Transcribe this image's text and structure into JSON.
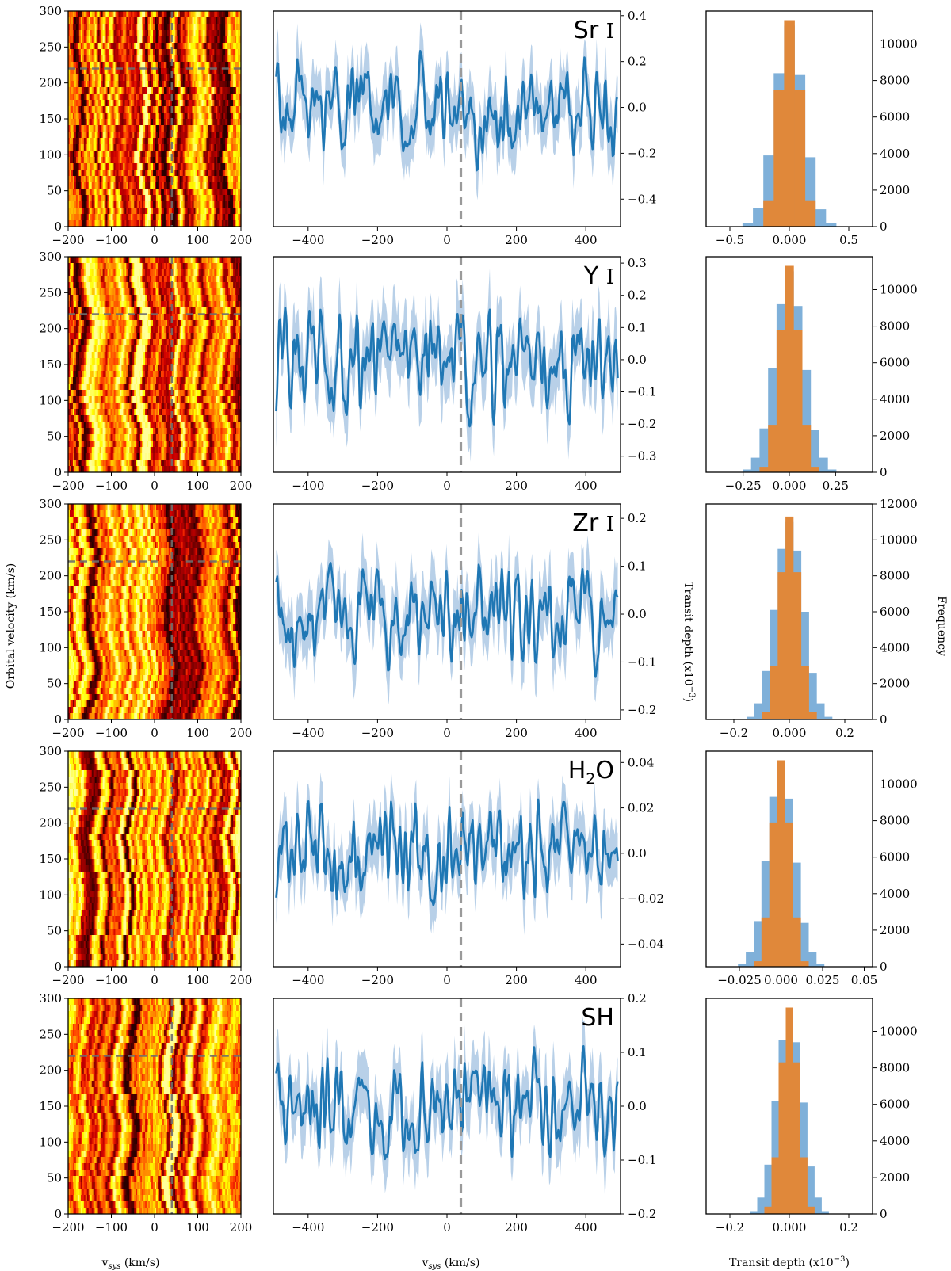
{
  "figure": {
    "left_xlabel": "v<sub>sys</sub> (km/s)",
    "mid_xlabel": "v<sub>sys</sub> (km/s)",
    "right_xlabel": "Transit depth (x10<sup>−3</sup>)",
    "left_ylabel": "Orbital velocity (km/s)",
    "mid_ylabel": "Transit depth (x10<sup>−3</sup>)",
    "right_ylabel": "Frequency"
  },
  "chart_data": [
    {
      "type": "heatmap",
      "panel": "ccf-map",
      "species": "Sr I",
      "xlim": [
        -200,
        200
      ],
      "ylim": [
        0,
        300
      ],
      "xticks": [
        -200,
        -100,
        0,
        100,
        200
      ],
      "yticks": [
        0,
        50,
        100,
        150,
        200,
        250,
        300
      ],
      "marker_vsys": 40,
      "marker_kp": 220,
      "colormap": "hot"
    },
    {
      "type": "line",
      "panel": "ccf-1d",
      "species": "Sr I",
      "xlim": [
        -500,
        500
      ],
      "ylim": [
        -0.52,
        0.42
      ],
      "xticks": [
        -400,
        -200,
        0,
        200,
        400
      ],
      "yticks": [
        -0.4,
        -0.2,
        0.0,
        0.2,
        0.4
      ],
      "amplitude": 0.1,
      "marker_vsys": 40,
      "line_color": "#1f77b4",
      "band_color": "#b8d0e8"
    },
    {
      "type": "bar",
      "panel": "histogram",
      "species": "Sr I",
      "xlim": [
        -0.7,
        0.7
      ],
      "ylim": [
        0,
        11800
      ],
      "xticks": [
        -0.5,
        0.0,
        0.5
      ],
      "yticks": [
        0,
        2000,
        4000,
        6000,
        8000,
        10000
      ],
      "series": [
        {
          "color": "#7fb0d9",
          "bin_width": 0.0875,
          "bin_centers": [
            -0.35,
            -0.2625,
            -0.175,
            -0.0875,
            0.0,
            0.0875,
            0.175,
            0.2625,
            0.35
          ],
          "counts": [
            200,
            1000,
            3900,
            8400,
            11000,
            8300,
            3800,
            950,
            200
          ]
        },
        {
          "color": "#e0883a",
          "bin_width": 0.0875,
          "bin_centers": [
            -0.175,
            -0.0875,
            0.0,
            0.0875,
            0.175
          ],
          "counts": [
            1400,
            7500,
            11300,
            7500,
            1400
          ]
        }
      ]
    },
    {
      "type": "heatmap",
      "panel": "ccf-map",
      "species": "Y I",
      "xlim": [
        -200,
        200
      ],
      "ylim": [
        0,
        300
      ],
      "xticks": [
        -200,
        -100,
        0,
        100,
        200
      ],
      "yticks": [
        0,
        50,
        100,
        150,
        200,
        250,
        300
      ],
      "marker_vsys": 40,
      "marker_kp": 220,
      "colormap": "hot"
    },
    {
      "type": "line",
      "panel": "ccf-1d",
      "species": "Y I",
      "xlim": [
        -500,
        500
      ],
      "ylim": [
        -0.35,
        0.32
      ],
      "xticks": [
        -400,
        -200,
        0,
        200,
        400
      ],
      "yticks": [
        -0.3,
        -0.2,
        -0.1,
        0.0,
        0.1,
        0.2,
        0.3
      ],
      "amplitude": 0.08,
      "marker_vsys": 40,
      "line_color": "#1f77b4",
      "band_color": "#b8d0e8"
    },
    {
      "type": "bar",
      "panel": "histogram",
      "species": "Y I",
      "xlim": [
        -0.45,
        0.45
      ],
      "ylim": [
        0,
        11800
      ],
      "xticks": [
        -0.25,
        0.0,
        0.25
      ],
      "yticks": [
        0,
        2000,
        4000,
        6000,
        8000,
        10000
      ],
      "series": [
        {
          "color": "#7fb0d9",
          "bin_width": 0.046,
          "bin_centers": [
            -0.23,
            -0.184,
            -0.138,
            -0.092,
            -0.046,
            0.0,
            0.046,
            0.092,
            0.138,
            0.184,
            0.23
          ],
          "counts": [
            150,
            800,
            2400,
            5700,
            9200,
            11000,
            9100,
            5600,
            2300,
            800,
            150
          ]
        },
        {
          "color": "#e0883a",
          "bin_width": 0.046,
          "bin_centers": [
            -0.138,
            -0.092,
            -0.046,
            0.0,
            0.046,
            0.092,
            0.138
          ],
          "counts": [
            300,
            2600,
            7800,
            11300,
            7800,
            2600,
            300
          ]
        }
      ]
    },
    {
      "type": "heatmap",
      "panel": "ccf-map",
      "species": "Zr I",
      "xlim": [
        -200,
        200
      ],
      "ylim": [
        0,
        300
      ],
      "xticks": [
        -200,
        -100,
        0,
        100,
        200
      ],
      "yticks": [
        0,
        50,
        100,
        150,
        200,
        250,
        300
      ],
      "marker_vsys": 40,
      "marker_kp": 220,
      "colormap": "hot"
    },
    {
      "type": "line",
      "panel": "ccf-1d",
      "species": "Zr I",
      "xlim": [
        -500,
        500
      ],
      "ylim": [
        -0.22,
        0.23
      ],
      "xticks": [
        -400,
        -200,
        0,
        200,
        400
      ],
      "yticks": [
        -0.2,
        -0.1,
        0.0,
        0.1,
        0.2
      ],
      "amplitude": 0.05,
      "marker_vsys": 40,
      "line_color": "#1f77b4",
      "band_color": "#b8d0e8"
    },
    {
      "type": "bar",
      "panel": "histogram",
      "species": "Zr I",
      "xlim": [
        -0.3,
        0.3
      ],
      "ylim": [
        0,
        12000
      ],
      "xticks": [
        -0.2,
        0.0,
        0.2
      ],
      "yticks": [
        0,
        2000,
        4000,
        6000,
        8000,
        10000,
        12000
      ],
      "series": [
        {
          "color": "#7fb0d9",
          "bin_width": 0.028,
          "bin_centers": [
            -0.14,
            -0.112,
            -0.084,
            -0.056,
            -0.028,
            0.0,
            0.028,
            0.056,
            0.084,
            0.112,
            0.14
          ],
          "counts": [
            150,
            900,
            2700,
            6100,
            9500,
            11000,
            9400,
            6000,
            2600,
            900,
            150
          ]
        },
        {
          "color": "#e0883a",
          "bin_width": 0.028,
          "bin_centers": [
            -0.084,
            -0.056,
            -0.028,
            0.0,
            0.028,
            0.056,
            0.084
          ],
          "counts": [
            400,
            3000,
            8200,
            11300,
            8200,
            3000,
            400
          ]
        }
      ]
    },
    {
      "type": "heatmap",
      "panel": "ccf-map",
      "species": "H2O",
      "xlim": [
        -200,
        200
      ],
      "ylim": [
        0,
        300
      ],
      "xticks": [
        -200,
        -100,
        0,
        100,
        200
      ],
      "yticks": [
        0,
        50,
        100,
        150,
        200,
        250,
        300
      ],
      "marker_vsys": 40,
      "marker_kp": 220,
      "colormap": "hot"
    },
    {
      "type": "line",
      "panel": "ccf-1d",
      "species": "H2O",
      "xlim": [
        -500,
        500
      ],
      "ylim": [
        -0.05,
        0.045
      ],
      "xticks": [
        -400,
        -200,
        0,
        200,
        400
      ],
      "yticks": [
        -0.04,
        -0.02,
        0.0,
        0.02,
        0.04
      ],
      "amplitude": 0.01,
      "marker_vsys": 40,
      "line_color": "#1f77b4",
      "band_color": "#b8d0e8"
    },
    {
      "type": "bar",
      "panel": "histogram",
      "species": "H2O",
      "xlim": [
        -0.045,
        0.055
      ],
      "ylim": [
        0,
        11800
      ],
      "xticks": [
        -0.025,
        0.0,
        0.025,
        0.05
      ],
      "yticks": [
        0,
        2000,
        4000,
        6000,
        8000,
        10000
      ],
      "series": [
        {
          "color": "#7fb0d9",
          "bin_width": 0.0047,
          "bin_centers": [
            -0.0235,
            -0.0188,
            -0.0141,
            -0.0094,
            -0.0047,
            0.0,
            0.0047,
            0.0094,
            0.0141,
            0.0188,
            0.0235
          ],
          "counts": [
            150,
            800,
            2500,
            5800,
            9300,
            11000,
            9200,
            5700,
            2400,
            800,
            150
          ]
        },
        {
          "color": "#e0883a",
          "bin_width": 0.0047,
          "bin_centers": [
            -0.0141,
            -0.0094,
            -0.0047,
            0.0,
            0.0047,
            0.0094,
            0.0141
          ],
          "counts": [
            300,
            2700,
            7900,
            11300,
            7900,
            2700,
            300
          ]
        }
      ]
    },
    {
      "type": "heatmap",
      "panel": "ccf-map",
      "species": "SH",
      "xlim": [
        -200,
        200
      ],
      "ylim": [
        0,
        300
      ],
      "xticks": [
        -200,
        -100,
        0,
        100,
        200
      ],
      "yticks": [
        0,
        50,
        100,
        150,
        200,
        250,
        300
      ],
      "marker_vsys": 40,
      "marker_kp": 220,
      "colormap": "hot"
    },
    {
      "type": "line",
      "panel": "ccf-1d",
      "species": "SH",
      "xlim": [
        -500,
        500
      ],
      "ylim": [
        -0.2,
        0.2
      ],
      "xticks": [
        -400,
        -200,
        0,
        200,
        400
      ],
      "yticks": [
        -0.2,
        -0.1,
        0.0,
        0.1,
        0.2
      ],
      "amplitude": 0.045,
      "marker_vsys": 40,
      "line_color": "#1f77b4",
      "band_color": "#b8d0e8"
    },
    {
      "type": "bar",
      "panel": "histogram",
      "species": "SH",
      "xlim": [
        -0.28,
        0.28
      ],
      "ylim": [
        0,
        11800
      ],
      "xticks": [
        -0.2,
        0.0,
        0.2
      ],
      "yticks": [
        0,
        2000,
        4000,
        6000,
        8000,
        10000
      ],
      "series": [
        {
          "color": "#7fb0d9",
          "bin_width": 0.024,
          "bin_centers": [
            -0.12,
            -0.096,
            -0.072,
            -0.048,
            -0.024,
            0.0,
            0.024,
            0.048,
            0.072,
            0.096,
            0.12
          ],
          "counts": [
            150,
            900,
            2700,
            6200,
            9500,
            11000,
            9400,
            6100,
            2600,
            900,
            150
          ]
        },
        {
          "color": "#e0883a",
          "bin_width": 0.024,
          "bin_centers": [
            -0.072,
            -0.048,
            -0.024,
            0.0,
            0.024,
            0.048,
            0.072
          ],
          "counts": [
            400,
            3100,
            8300,
            11300,
            8300,
            3100,
            400
          ]
        }
      ]
    }
  ]
}
